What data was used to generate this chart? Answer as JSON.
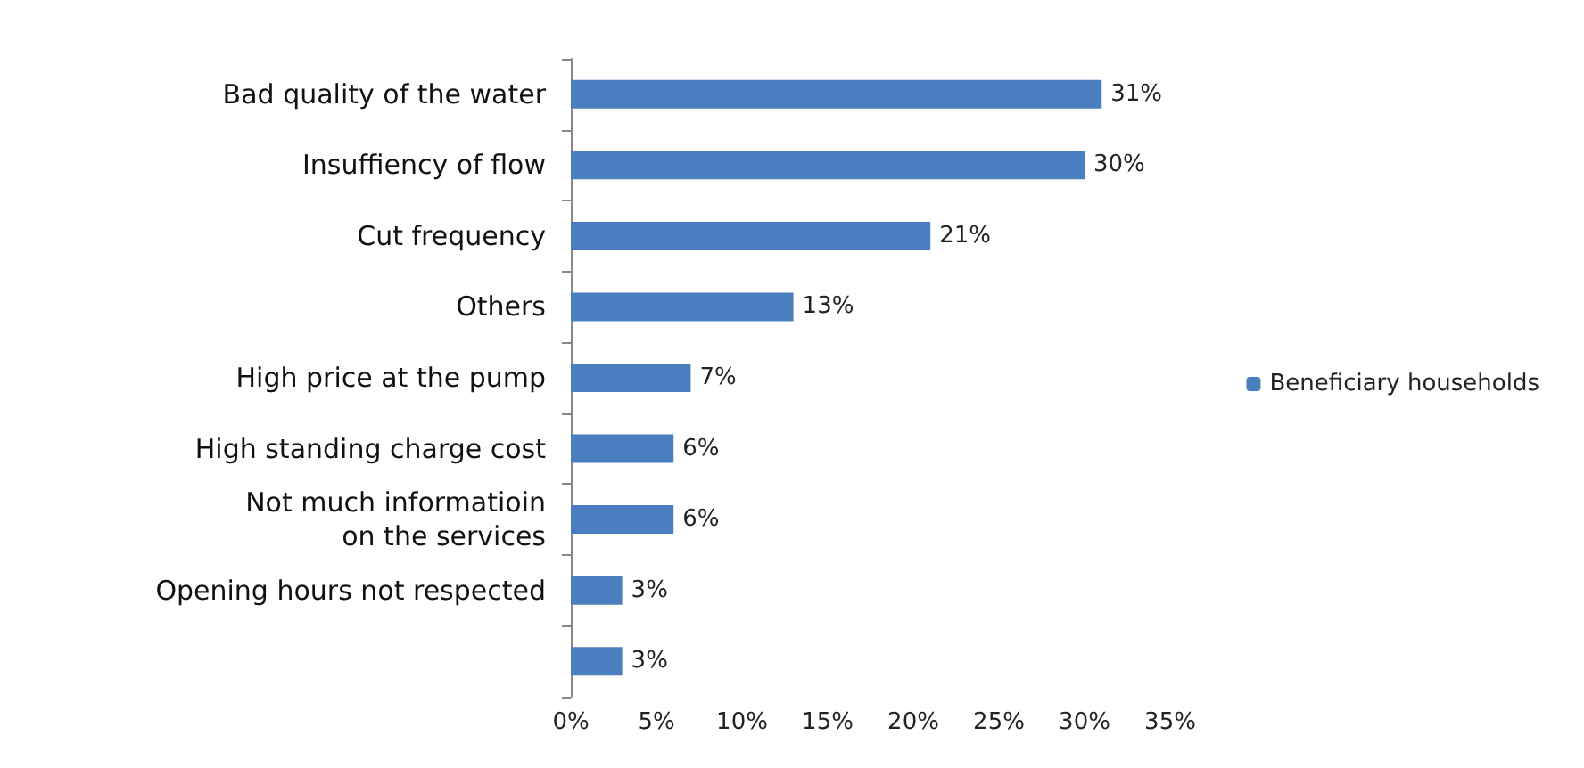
{
  "chart_data": {
    "type": "bar",
    "orientation": "horizontal",
    "categories": [
      "Bad quality of the water",
      "Insuffiency of flow",
      "Cut frequency",
      "Others",
      "High price at the pump",
      "High standing charge cost",
      "Not much informatioin\non the services",
      "Opening hours not respected",
      null
    ],
    "series": [
      {
        "name": "Beneficiary households",
        "color": "#4a7ebf",
        "values": [
          31,
          30,
          21,
          13,
          7,
          6,
          6,
          3,
          3
        ],
        "value_labels": [
          "31%",
          "30%",
          "21%",
          "13%",
          "7%",
          "6%",
          "6%",
          "3%",
          "3%"
        ]
      }
    ],
    "xlim": [
      0,
      35
    ],
    "xticks": [
      {
        "value": 0,
        "label": "0%"
      },
      {
        "value": 5,
        "label": "5%"
      },
      {
        "value": 10,
        "label": "10%"
      },
      {
        "value": 15,
        "label": "15%"
      },
      {
        "value": 20,
        "label": "20%"
      },
      {
        "value": 25,
        "label": "25%"
      },
      {
        "value": 30,
        "label": "30%"
      },
      {
        "value": 35,
        "label": "35%"
      }
    ],
    "grid": false,
    "legend": "right"
  }
}
